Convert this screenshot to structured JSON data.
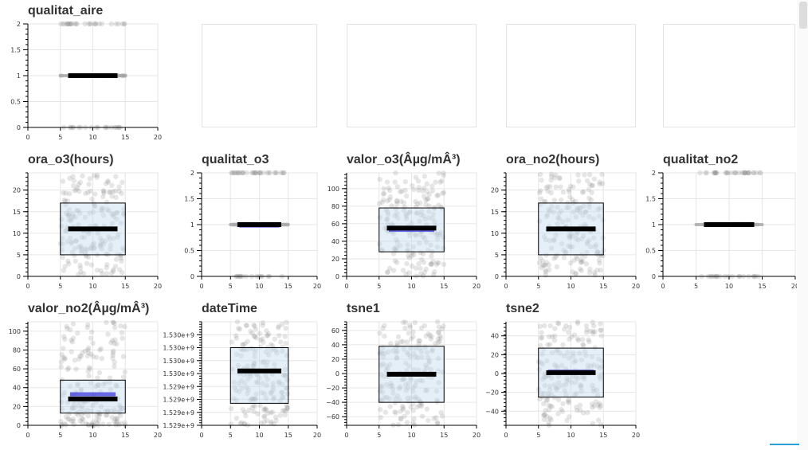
{
  "chart_data": [
    {
      "id": "qualitat_aire",
      "title": "qualitat_aire",
      "type": "boxplot",
      "xlim": [
        0,
        20
      ],
      "xticks": [
        0,
        5,
        10,
        15,
        20
      ],
      "ylim": [
        0,
        2
      ],
      "yticks": [
        0,
        0.5,
        1,
        1.5,
        2
      ],
      "ytick_labels": [
        "0",
        "0.5",
        "1",
        "1.5",
        "2"
      ],
      "box": {
        "q1": 1,
        "q3": 1,
        "median": 1,
        "mean": 1
      },
      "collapsed": true,
      "jitter": "binary"
    },
    {
      "id": "empty1",
      "empty": true
    },
    {
      "id": "empty2",
      "empty": true
    },
    {
      "id": "empty3",
      "empty": true
    },
    {
      "id": "empty4",
      "empty": true
    },
    {
      "id": "ora_o3",
      "title": "ora_o3(hours)",
      "type": "boxplot",
      "xlim": [
        0,
        20
      ],
      "xticks": [
        0,
        5,
        10,
        15,
        20
      ],
      "ylim": [
        0,
        24
      ],
      "yticks": [
        0,
        5,
        10,
        15,
        20
      ],
      "ytick_labels": [
        "0",
        "5",
        "10",
        "15",
        "20"
      ],
      "box": {
        "q1": 5,
        "q3": 17,
        "median": 11,
        "mean": 11
      },
      "jitter": "uniform"
    },
    {
      "id": "qualitat_o3",
      "title": "qualitat_o3",
      "type": "boxplot",
      "xlim": [
        0,
        20
      ],
      "xticks": [
        0,
        5,
        10,
        15,
        20
      ],
      "ylim": [
        0,
        2
      ],
      "yticks": [
        0,
        0.5,
        1,
        1.5,
        2
      ],
      "ytick_labels": [
        "0",
        "0.5",
        "1",
        "1.5",
        "2"
      ],
      "box": {
        "q1": 1,
        "q3": 1,
        "median": 1,
        "mean": 0.98
      },
      "collapsed": true,
      "jitter": "binary"
    },
    {
      "id": "valor_o3",
      "title": "valor_o3(Âµg/mÂ³)",
      "type": "boxplot",
      "xlim": [
        0,
        20
      ],
      "xticks": [
        0,
        5,
        10,
        15,
        20
      ],
      "ylim": [
        0,
        118
      ],
      "yticks": [
        0,
        20,
        40,
        60,
        80,
        100
      ],
      "ytick_labels": [
        "0",
        "20",
        "40",
        "60",
        "80",
        "100"
      ],
      "box": {
        "q1": 28,
        "q3": 78,
        "median": 55,
        "mean": 53
      },
      "jitter": "uniform"
    },
    {
      "id": "ora_no2",
      "title": "ora_no2(hours)",
      "type": "boxplot",
      "xlim": [
        0,
        20
      ],
      "xticks": [
        0,
        5,
        10,
        15,
        20
      ],
      "ylim": [
        0,
        24
      ],
      "yticks": [
        0,
        5,
        10,
        15,
        20
      ],
      "ytick_labels": [
        "0",
        "5",
        "10",
        "15",
        "20"
      ],
      "box": {
        "q1": 5,
        "q3": 17,
        "median": 11,
        "mean": 11
      },
      "jitter": "uniform"
    },
    {
      "id": "qualitat_no2",
      "title": "qualitat_no2",
      "type": "boxplot",
      "xlim": [
        0,
        20
      ],
      "xticks": [
        0,
        5,
        10,
        15,
        20
      ],
      "ylim": [
        0,
        2
      ],
      "yticks": [
        0,
        0.5,
        1,
        1.5,
        2
      ],
      "ytick_labels": [
        "0",
        "0.5",
        "1",
        "1.5",
        "2"
      ],
      "box": {
        "q1": 1,
        "q3": 1,
        "median": 1,
        "mean": 1
      },
      "collapsed": true,
      "jitter": "binary"
    },
    {
      "id": "valor_no2",
      "title": "valor_no2(Âµg/mÂ³)",
      "type": "boxplot",
      "xlim": [
        0,
        20
      ],
      "xticks": [
        0,
        5,
        10,
        15,
        20
      ],
      "ylim": [
        0,
        110
      ],
      "yticks": [
        0,
        20,
        40,
        60,
        80,
        100
      ],
      "ytick_labels": [
        "0",
        "20",
        "40",
        "60",
        "80",
        "100"
      ],
      "box": {
        "q1": 13,
        "q3": 48,
        "median": 28,
        "mean": 33
      },
      "jitter": "skewed"
    },
    {
      "id": "dateTime",
      "title": "dateTime",
      "type": "boxplot",
      "xlim": [
        0,
        20
      ],
      "xticks": [
        0,
        5,
        10,
        15,
        20
      ],
      "ylim": [
        0,
        8
      ],
      "yticks": [
        0,
        1,
        2,
        3,
        4,
        5,
        6,
        7
      ],
      "ytick_labels": [
        "1.529e+9",
        "1.529e+9",
        "1.529e+9",
        "1.529e+9",
        "1.530e+9",
        "1.530e+9",
        "1.530e+9",
        "1.530e+9"
      ],
      "box": {
        "q1": 1.7,
        "q3": 6,
        "median": 4.2,
        "mean": 4.2
      },
      "jitter": "uniform"
    },
    {
      "id": "tsne1",
      "title": "tsne1",
      "type": "boxplot",
      "xlim": [
        0,
        20
      ],
      "xticks": [
        0,
        5,
        10,
        15,
        20
      ],
      "ylim": [
        -72,
        72
      ],
      "yticks": [
        -60,
        -40,
        -20,
        0,
        20,
        40,
        60
      ],
      "ytick_labels": [
        "−60",
        "−40",
        "−20",
        "0",
        "20",
        "40",
        "60"
      ],
      "box": {
        "q1": -40,
        "q3": 38,
        "median": -1,
        "mean": -1
      },
      "jitter": "uniform"
    },
    {
      "id": "tsne2",
      "title": "tsne2",
      "type": "boxplot",
      "xlim": [
        0,
        20
      ],
      "xticks": [
        0,
        5,
        10,
        15,
        20
      ],
      "ylim": [
        -55,
        55
      ],
      "yticks": [
        -40,
        -20,
        0,
        20,
        40
      ],
      "ytick_labels": [
        "−40",
        "−20",
        "0",
        "20",
        "40"
      ],
      "box": {
        "q1": -25,
        "q3": 27,
        "median": 1,
        "mean": 2
      },
      "jitter": "uniform"
    }
  ]
}
